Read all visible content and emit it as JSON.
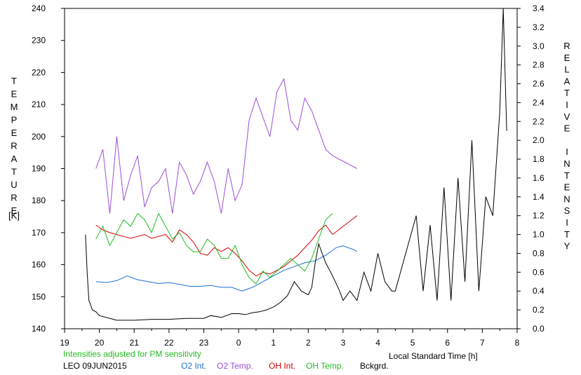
{
  "chart_data": {
    "type": "line",
    "title": "",
    "station_date": "LEO 09JUN2015",
    "note": "Intensities adjusted for PM sensitivity",
    "xlabel": "Local Standard Time [h]",
    "ylabel_left": "TEMPERATURE",
    "ylabel_left_unit": "[K]",
    "ylabel_right": "RELATIVE INTENSITY",
    "x_tick_labels": [
      "19",
      "20",
      "21",
      "22",
      "23",
      "0",
      "1",
      "2",
      "3",
      "4",
      "5",
      "6",
      "7",
      "8"
    ],
    "xlim": [
      19,
      32
    ],
    "ylim_left": [
      140,
      240
    ],
    "ylim_right": [
      0.0,
      3.4
    ],
    "y_left_ticks": [
      140,
      150,
      160,
      170,
      180,
      190,
      200,
      210,
      220,
      230,
      240
    ],
    "y_right_ticks": [
      0.0,
      0.2,
      0.4,
      0.6,
      0.8,
      1.0,
      1.2,
      1.4,
      1.6,
      1.8,
      2.0,
      2.2,
      2.4,
      2.6,
      2.8,
      3.0,
      3.2,
      3.4
    ],
    "grid": false,
    "legend_position": "bottom",
    "colors": {
      "o2_int": "#1e6fd6",
      "o2_temp": "#9b4fd6",
      "oh_int": "#d40000",
      "oh_temp": "#22bb22",
      "bckgrd": "#000000",
      "note": "#22bb22"
    },
    "series": [
      {
        "name": "O2 Int.",
        "axis": "right",
        "x": [
          19.9,
          20.2,
          20.5,
          20.8,
          21.1,
          21.4,
          21.7,
          22.0,
          22.3,
          22.6,
          22.9,
          23.2,
          23.5,
          23.8,
          24.1,
          24.4,
          24.7,
          25.0,
          25.3,
          25.6,
          25.9,
          26.2,
          26.5,
          26.8,
          27.0,
          27.3,
          27.4
        ],
        "y": [
          0.5,
          0.49,
          0.51,
          0.56,
          0.52,
          0.5,
          0.48,
          0.49,
          0.47,
          0.45,
          0.45,
          0.46,
          0.44,
          0.44,
          0.4,
          0.44,
          0.5,
          0.56,
          0.62,
          0.66,
          0.7,
          0.72,
          0.78,
          0.86,
          0.88,
          0.84,
          0.82
        ]
      },
      {
        "name": "O2 Temp.",
        "axis": "left",
        "x": [
          19.9,
          20.1,
          20.3,
          20.5,
          20.7,
          20.9,
          21.1,
          21.3,
          21.5,
          21.7,
          21.9,
          22.1,
          22.3,
          22.5,
          22.7,
          22.9,
          23.1,
          23.3,
          23.5,
          23.7,
          23.9,
          24.1,
          24.3,
          24.5,
          24.7,
          24.9,
          25.1,
          25.3,
          25.5,
          25.7,
          25.9,
          26.1,
          26.3,
          26.5,
          26.7,
          27.4
        ],
        "y": [
          190,
          196,
          176,
          200,
          180,
          188,
          194,
          178,
          184,
          186,
          190,
          176,
          192,
          188,
          182,
          186,
          192,
          186,
          176,
          190,
          180,
          185,
          205,
          212,
          206,
          200,
          214,
          218,
          205,
          202,
          212,
          208,
          202,
          196,
          194,
          190
        ]
      },
      {
        "name": "OH Int.",
        "axis": "right",
        "x": [
          19.9,
          20.1,
          20.3,
          20.5,
          20.7,
          20.9,
          21.1,
          21.3,
          21.5,
          21.7,
          21.9,
          22.1,
          22.3,
          22.5,
          22.7,
          22.9,
          23.1,
          23.3,
          23.5,
          23.7,
          23.9,
          24.1,
          24.3,
          24.5,
          24.7,
          24.9,
          25.1,
          25.3,
          25.5,
          25.7,
          25.9,
          26.1,
          26.3,
          26.5,
          26.7,
          27.4
        ],
        "y": [
          1.1,
          1.05,
          1.02,
          1.0,
          0.98,
          0.96,
          0.98,
          1.0,
          0.96,
          0.98,
          1.0,
          0.92,
          1.05,
          1.0,
          0.92,
          0.8,
          0.78,
          0.86,
          0.82,
          0.86,
          0.8,
          0.72,
          0.62,
          0.56,
          0.6,
          0.58,
          0.62,
          0.66,
          0.72,
          0.78,
          0.86,
          0.94,
          1.04,
          1.1,
          1.0,
          1.2
        ]
      },
      {
        "name": "OH Temp.",
        "axis": "left",
        "x": [
          19.9,
          20.1,
          20.3,
          20.5,
          20.7,
          20.9,
          21.1,
          21.3,
          21.5,
          21.7,
          21.9,
          22.1,
          22.3,
          22.5,
          22.7,
          22.9,
          23.1,
          23.3,
          23.5,
          23.7,
          23.9,
          24.1,
          24.3,
          24.5,
          24.7,
          24.9,
          25.1,
          25.3,
          25.5,
          25.7,
          25.9,
          26.1,
          26.3,
          26.5,
          26.7
        ],
        "y": [
          168,
          172,
          166,
          170,
          174,
          172,
          176,
          174,
          170,
          176,
          172,
          168,
          170,
          166,
          164,
          164,
          168,
          166,
          162,
          162,
          166,
          160,
          156,
          154,
          158,
          156,
          158,
          160,
          162,
          160,
          158,
          162,
          168,
          174,
          176
        ]
      },
      {
        "name": "Bckgrd.",
        "axis": "right",
        "x": [
          19.6,
          19.65,
          19.7,
          19.8,
          19.9,
          20.0,
          20.5,
          21.0,
          21.5,
          22.0,
          22.5,
          23.0,
          23.2,
          23.5,
          23.8,
          24.0,
          24.2,
          24.4,
          24.6,
          24.8,
          25.0,
          25.2,
          25.4,
          25.6,
          25.8,
          26.0,
          26.1,
          26.2,
          26.3,
          26.5,
          26.7,
          26.9,
          27.0,
          27.2,
          27.4,
          27.6,
          27.8,
          28.0,
          28.2,
          28.4,
          28.5,
          29.1,
          29.3,
          29.5,
          29.7,
          29.9,
          30.1,
          30.3,
          30.5,
          30.7,
          30.9,
          31.1,
          31.3,
          31.5,
          31.6,
          31.7
        ],
        "y": [
          1.0,
          0.6,
          0.3,
          0.2,
          0.18,
          0.14,
          0.09,
          0.09,
          0.1,
          0.1,
          0.11,
          0.11,
          0.14,
          0.12,
          0.16,
          0.16,
          0.15,
          0.17,
          0.18,
          0.2,
          0.23,
          0.28,
          0.35,
          0.5,
          0.4,
          0.36,
          0.44,
          0.7,
          0.9,
          0.7,
          0.56,
          0.4,
          0.3,
          0.4,
          0.3,
          0.6,
          0.4,
          0.8,
          0.5,
          0.4,
          0.4,
          1.2,
          0.4,
          1.1,
          0.3,
          1.5,
          0.3,
          1.6,
          0.5,
          2.0,
          0.4,
          1.4,
          1.2,
          2.3,
          3.4,
          2.1
        ]
      }
    ]
  }
}
